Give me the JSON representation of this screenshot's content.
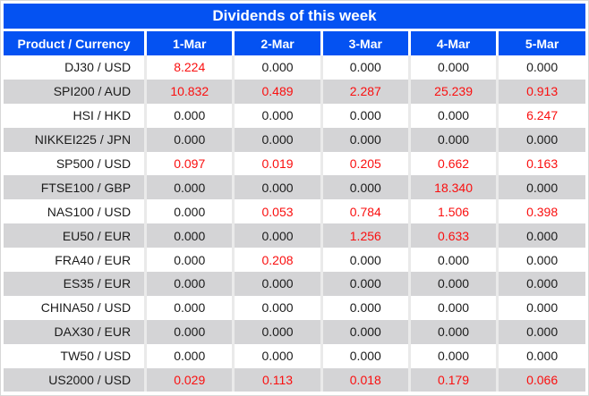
{
  "title": "Dividends of this week",
  "colors": {
    "header_blue": "#0452f2",
    "value_red": "#fa0f0f",
    "row_shade": "#d4d4d6"
  },
  "table": {
    "columns": [
      "Product / Currency",
      "1-Mar",
      "2-Mar",
      "3-Mar",
      "4-Mar",
      "5-Mar"
    ],
    "rows": [
      {
        "product": "DJ30 / USD",
        "values": [
          "8.224",
          "0.000",
          "0.000",
          "0.000",
          "0.000"
        ],
        "red": [
          true,
          false,
          false,
          false,
          false
        ]
      },
      {
        "product": "SPI200 / AUD",
        "values": [
          "10.832",
          "0.489",
          "2.287",
          "25.239",
          "0.913"
        ],
        "red": [
          true,
          true,
          true,
          true,
          true
        ]
      },
      {
        "product": "HSI / HKD",
        "values": [
          "0.000",
          "0.000",
          "0.000",
          "0.000",
          "6.247"
        ],
        "red": [
          false,
          false,
          false,
          false,
          true
        ]
      },
      {
        "product": "NIKKEI225 / JPN",
        "values": [
          "0.000",
          "0.000",
          "0.000",
          "0.000",
          "0.000"
        ],
        "red": [
          false,
          false,
          false,
          false,
          false
        ]
      },
      {
        "product": "SP500 / USD",
        "values": [
          "0.097",
          "0.019",
          "0.205",
          "0.662",
          "0.163"
        ],
        "red": [
          true,
          true,
          true,
          true,
          true
        ]
      },
      {
        "product": "FTSE100 / GBP",
        "values": [
          "0.000",
          "0.000",
          "0.000",
          "18.340",
          "0.000"
        ],
        "red": [
          false,
          false,
          false,
          true,
          false
        ]
      },
      {
        "product": "NAS100 / USD",
        "values": [
          "0.000",
          "0.053",
          "0.784",
          "1.506",
          "0.398"
        ],
        "red": [
          false,
          true,
          true,
          true,
          true
        ]
      },
      {
        "product": "EU50 / EUR",
        "values": [
          "0.000",
          "0.000",
          "1.256",
          "0.633",
          "0.000"
        ],
        "red": [
          false,
          false,
          true,
          true,
          false
        ]
      },
      {
        "product": "FRA40 / EUR",
        "values": [
          "0.000",
          "0.208",
          "0.000",
          "0.000",
          "0.000"
        ],
        "red": [
          false,
          true,
          false,
          false,
          false
        ]
      },
      {
        "product": "ES35 / EUR",
        "values": [
          "0.000",
          "0.000",
          "0.000",
          "0.000",
          "0.000"
        ],
        "red": [
          false,
          false,
          false,
          false,
          false
        ]
      },
      {
        "product": "CHINA50 / USD",
        "values": [
          "0.000",
          "0.000",
          "0.000",
          "0.000",
          "0.000"
        ],
        "red": [
          false,
          false,
          false,
          false,
          false
        ]
      },
      {
        "product": "DAX30 / EUR",
        "values": [
          "0.000",
          "0.000",
          "0.000",
          "0.000",
          "0.000"
        ],
        "red": [
          false,
          false,
          false,
          false,
          false
        ]
      },
      {
        "product": "TW50 / USD",
        "values": [
          "0.000",
          "0.000",
          "0.000",
          "0.000",
          "0.000"
        ],
        "red": [
          false,
          false,
          false,
          false,
          false
        ]
      },
      {
        "product": "US2000 / USD",
        "values": [
          "0.029",
          "0.113",
          "0.018",
          "0.179",
          "0.066"
        ],
        "red": [
          true,
          true,
          true,
          true,
          true
        ]
      }
    ]
  }
}
